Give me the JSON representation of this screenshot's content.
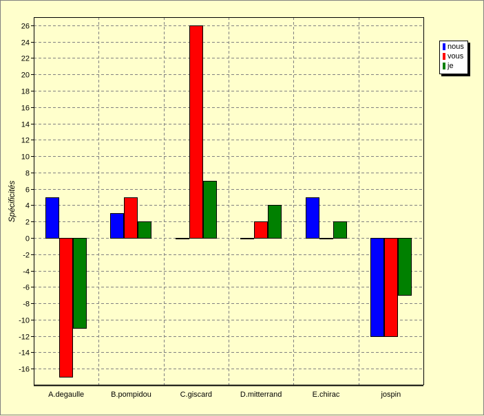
{
  "colors": {
    "nous": "#0000ff",
    "vous": "#ff0000",
    "je": "#008000",
    "background": "#ffffcc"
  },
  "chart_data": {
    "type": "bar",
    "title": "",
    "xlabel": "",
    "ylabel": "Spécificités",
    "categories": [
      "A.degaulle",
      "B.pompidou",
      "C.giscard",
      "D.mitterrand",
      "E.chirac",
      "jospin"
    ],
    "series": [
      {
        "name": "nous",
        "color": "#0000ff",
        "values": [
          5,
          3,
          0,
          0,
          5,
          -12
        ]
      },
      {
        "name": "vous",
        "color": "#ff0000",
        "values": [
          -17,
          5,
          26,
          2,
          0,
          -12
        ]
      },
      {
        "name": "je",
        "color": "#008000",
        "values": [
          -11,
          2,
          7,
          4,
          2,
          -7
        ]
      }
    ],
    "ylim": [
      -18,
      27
    ],
    "yticks": [
      -16,
      -14,
      -12,
      -10,
      -8,
      -6,
      -4,
      -2,
      0,
      2,
      4,
      6,
      8,
      10,
      12,
      14,
      16,
      18,
      20,
      22,
      24,
      26
    ],
    "grid": true,
    "legend_position": "right"
  }
}
